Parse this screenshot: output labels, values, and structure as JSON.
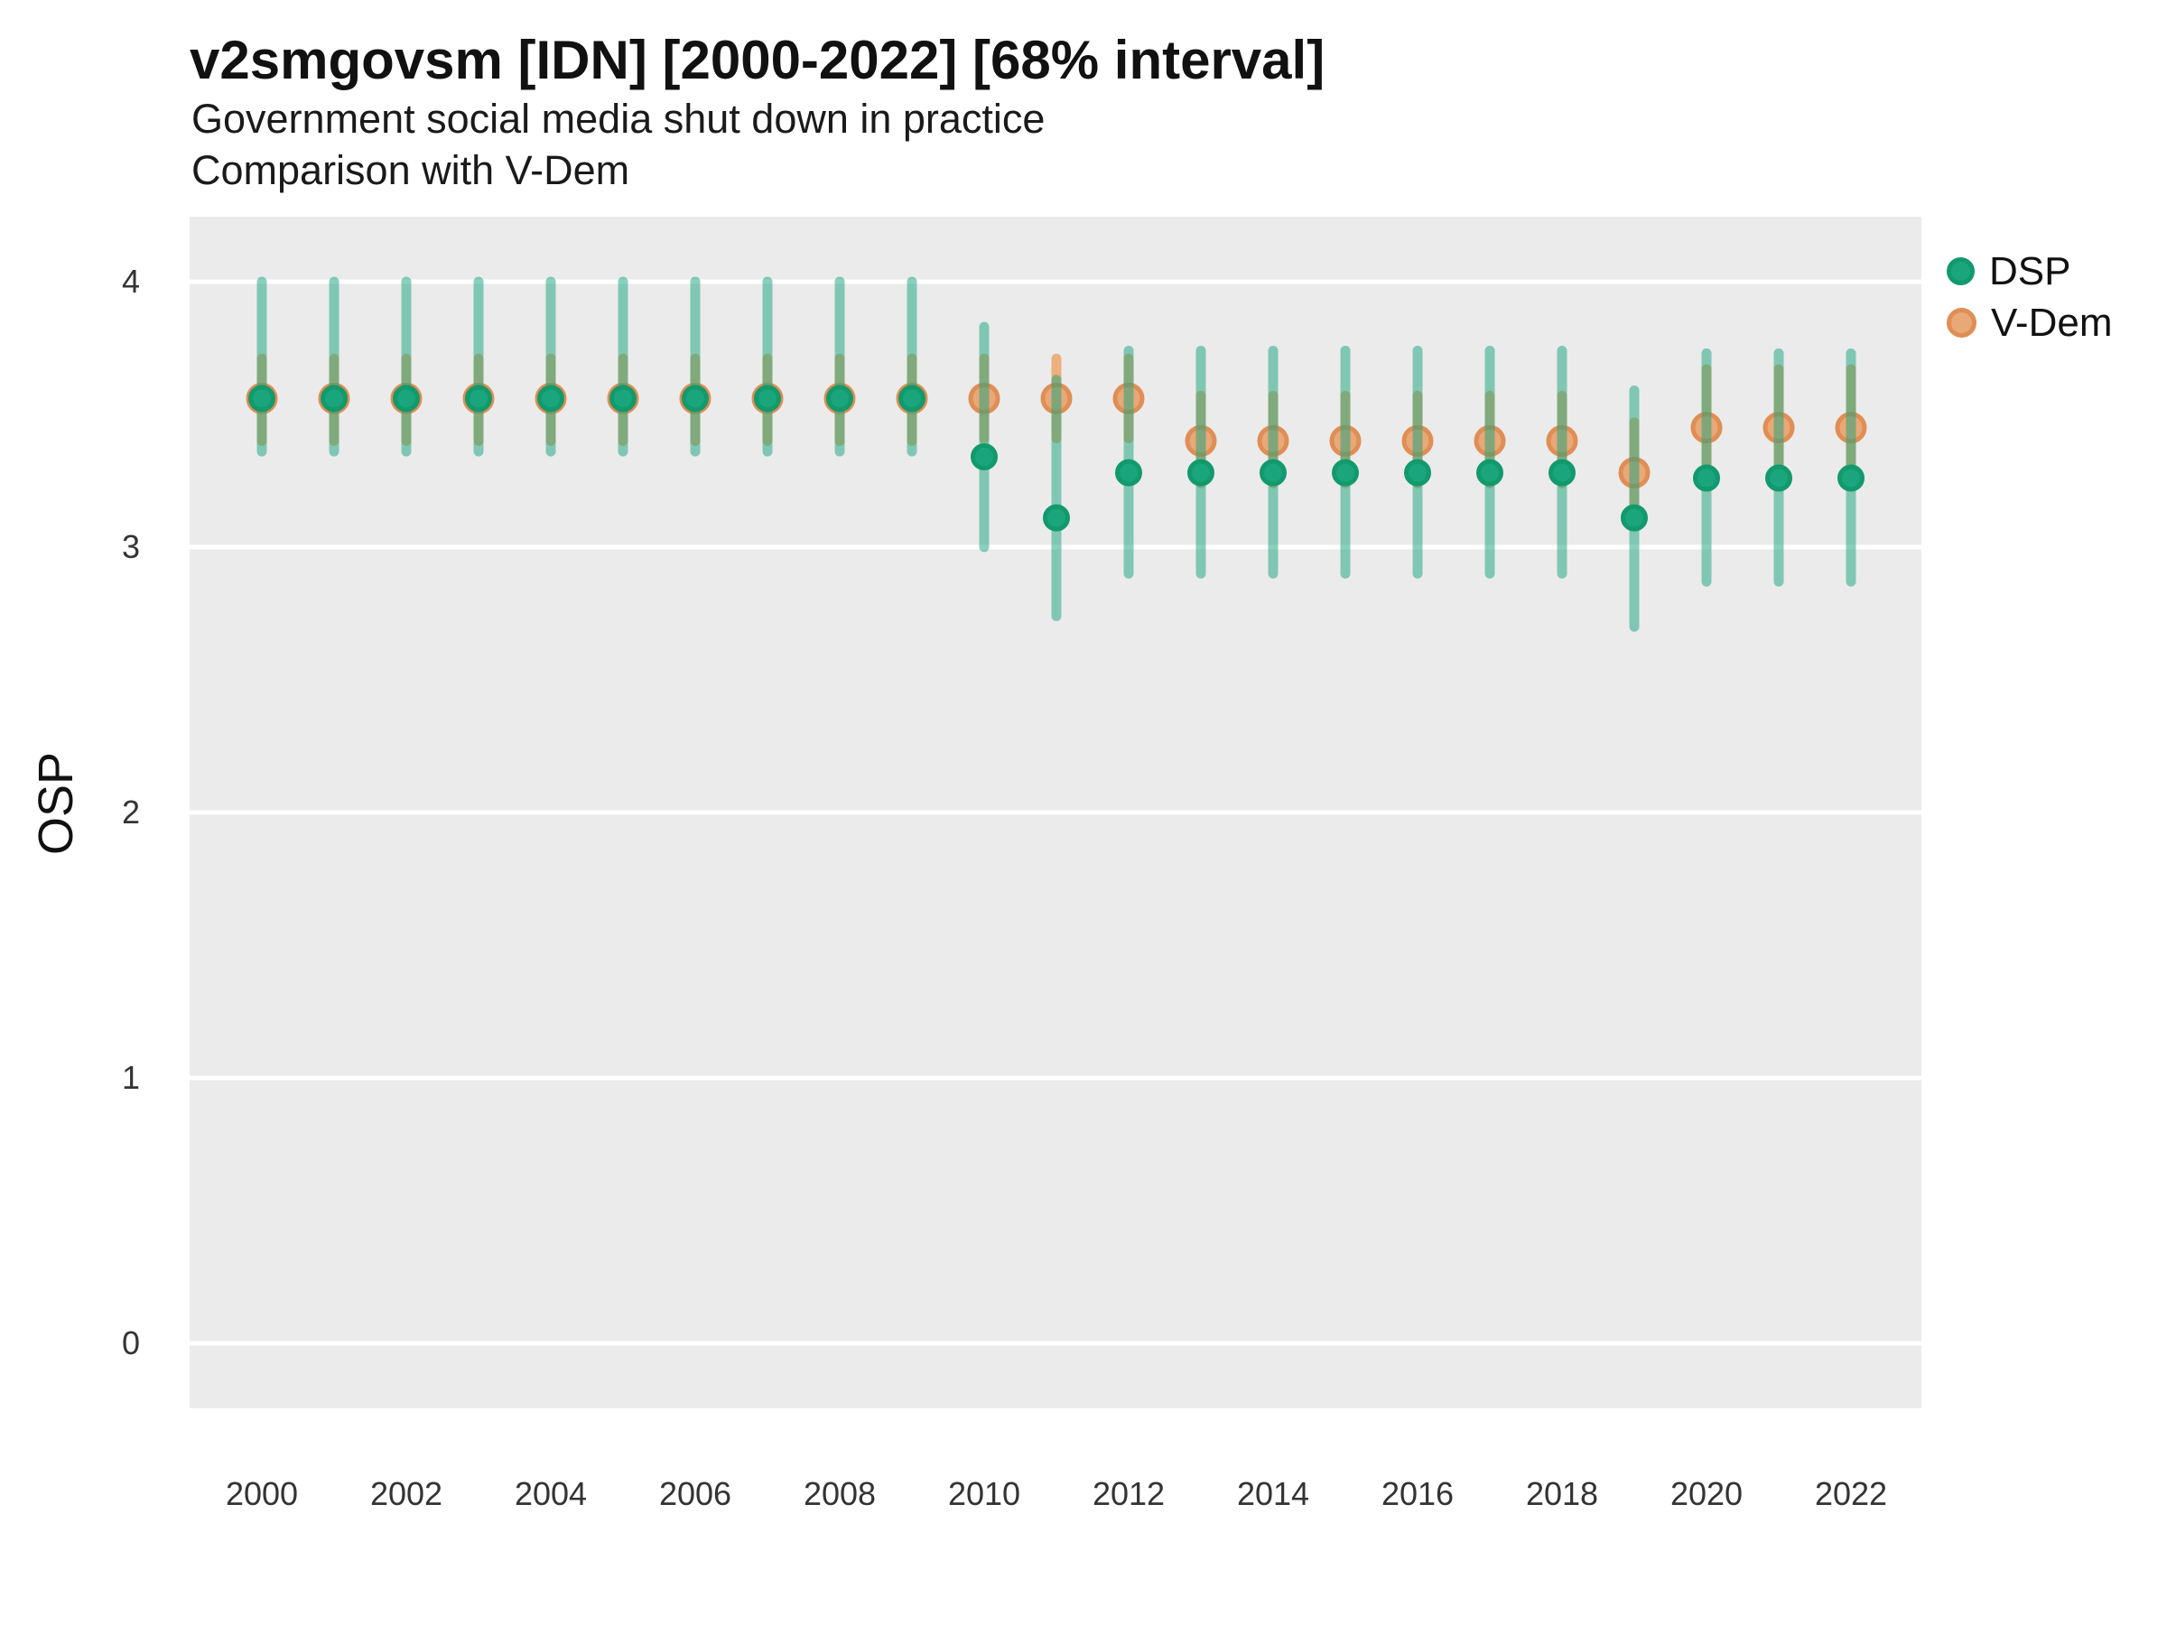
{
  "header": {
    "title": "v2smgovsm [IDN] [2000-2022] [68% interval]",
    "subtitle_line1": "Government social media shut down in practice",
    "subtitle_line2": "Comparison with V-Dem"
  },
  "axes": {
    "y_label": "OSP",
    "y_ticks": [
      0,
      1,
      2,
      3,
      4
    ],
    "x_ticks": [
      2000,
      2002,
      2004,
      2006,
      2008,
      2010,
      2012,
      2014,
      2016,
      2018,
      2020,
      2022
    ]
  },
  "legend": {
    "items": [
      {
        "label": "DSP",
        "color": "#1BA57C",
        "ring": "#12996C"
      },
      {
        "label": "V-Dem",
        "color": "#E8A878",
        "ring": "#DF8E55"
      }
    ]
  },
  "chart_data": {
    "type": "scatter",
    "title": "v2smgovsm [IDN] [2000-2022] [68% interval]",
    "subtitle": "Government social media shut down in practice — Comparison with V-Dem",
    "xlabel": "",
    "ylabel": "OSP",
    "interval": "68%",
    "ylim": [
      -0.25,
      4.25
    ],
    "grid": "on",
    "legend_position": "right-top",
    "panel_bg": "#EBEBEB",
    "grid_color": "#FFFFFF",
    "x": [
      2000,
      2001,
      2002,
      2003,
      2004,
      2005,
      2006,
      2007,
      2008,
      2009,
      2010,
      2011,
      2012,
      2013,
      2014,
      2015,
      2016,
      2017,
      2018,
      2019,
      2020,
      2021,
      2022
    ],
    "series": [
      {
        "name": "DSP",
        "point_color": "#1BA57C",
        "ring_color": "#12996C",
        "bar_color": "rgba(21,164,124,0.5)",
        "values": [
          3.56,
          3.56,
          3.56,
          3.56,
          3.56,
          3.56,
          3.56,
          3.56,
          3.56,
          3.56,
          3.34,
          3.11,
          3.28,
          3.28,
          3.28,
          3.28,
          3.28,
          3.28,
          3.28,
          3.11,
          3.26,
          3.26,
          3.26
        ],
        "lower": [
          3.36,
          3.36,
          3.36,
          3.36,
          3.36,
          3.36,
          3.36,
          3.36,
          3.36,
          3.36,
          3.0,
          2.74,
          2.9,
          2.9,
          2.9,
          2.9,
          2.9,
          2.9,
          2.9,
          2.7,
          2.87,
          2.87,
          2.87
        ],
        "upper": [
          4.0,
          4.0,
          4.0,
          4.0,
          4.0,
          4.0,
          4.0,
          4.0,
          4.0,
          4.0,
          3.83,
          3.63,
          3.74,
          3.74,
          3.74,
          3.74,
          3.74,
          3.74,
          3.74,
          3.59,
          3.73,
          3.73,
          3.73
        ]
      },
      {
        "name": "V-Dem",
        "point_color": "#E8A878",
        "ring_color": "#DF8E55",
        "bar_color": "#ECB07D",
        "values": [
          3.56,
          3.56,
          3.56,
          3.56,
          3.56,
          3.56,
          3.56,
          3.56,
          3.56,
          3.56,
          3.56,
          3.56,
          3.56,
          3.4,
          3.4,
          3.4,
          3.4,
          3.4,
          3.4,
          3.28,
          3.45,
          3.45,
          3.45
        ],
        "lower": [
          3.4,
          3.4,
          3.4,
          3.4,
          3.4,
          3.4,
          3.4,
          3.4,
          3.4,
          3.4,
          3.41,
          3.41,
          3.41,
          3.24,
          3.24,
          3.24,
          3.24,
          3.24,
          3.24,
          3.09,
          3.23,
          3.23,
          3.23
        ],
        "upper": [
          3.71,
          3.71,
          3.71,
          3.71,
          3.71,
          3.71,
          3.71,
          3.71,
          3.71,
          3.71,
          3.71,
          3.71,
          3.71,
          3.57,
          3.57,
          3.57,
          3.57,
          3.57,
          3.57,
          3.47,
          3.67,
          3.67,
          3.67
        ]
      }
    ]
  }
}
